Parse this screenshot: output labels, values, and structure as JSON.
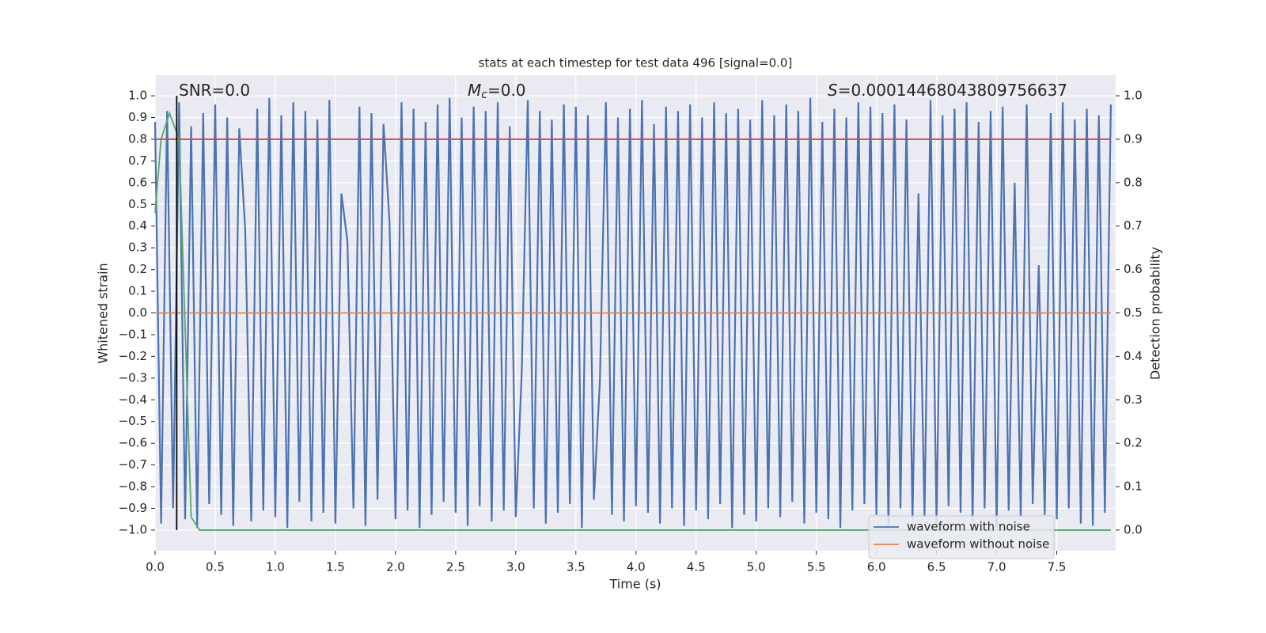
{
  "chart_data": {
    "type": "line",
    "title": "stats at each timestep for test data 496 [signal=0.0]",
    "xlabel": "Time (s)",
    "ylabel": "Whitened strain",
    "y2label": "Detection probability",
    "annotations": [
      {
        "text": "SNR=0.0"
      },
      {
        "symbol": "M",
        "sub": "c",
        "text": "=0.0"
      },
      {
        "symbol": "S",
        "text": "=0.00014468043809756637"
      }
    ],
    "xlim": [
      0,
      7.99
    ],
    "ylim": [
      -1.095,
      1.095
    ],
    "y2lim": [
      -0.0475,
      1.0475
    ],
    "xticks": [
      {
        "value": 0,
        "label": "0.0"
      },
      {
        "value": 0.5,
        "label": "0.5"
      },
      {
        "value": 1,
        "label": "1.0"
      },
      {
        "value": 1.5,
        "label": "1.5"
      },
      {
        "value": 2,
        "label": "2.0"
      },
      {
        "value": 2.5,
        "label": "2.5"
      },
      {
        "value": 3,
        "label": "3.0"
      },
      {
        "value": 3.5,
        "label": "3.5"
      },
      {
        "value": 4,
        "label": "4.0"
      },
      {
        "value": 4.5,
        "label": "4.5"
      },
      {
        "value": 5,
        "label": "5.0"
      },
      {
        "value": 5.5,
        "label": "5.5"
      },
      {
        "value": 6,
        "label": "6.0"
      },
      {
        "value": 6.5,
        "label": "6.5"
      },
      {
        "value": 7,
        "label": "7.0"
      },
      {
        "value": 7.5,
        "label": "7.5"
      }
    ],
    "yticks": [
      {
        "value": -1,
        "label": "−1.0"
      },
      {
        "value": -0.9,
        "label": "−0.9"
      },
      {
        "value": -0.8,
        "label": "−0.8"
      },
      {
        "value": -0.7,
        "label": "−0.7"
      },
      {
        "value": -0.6,
        "label": "−0.6"
      },
      {
        "value": -0.5,
        "label": "−0.5"
      },
      {
        "value": -0.4,
        "label": "−0.4"
      },
      {
        "value": -0.3,
        "label": "−0.3"
      },
      {
        "value": -0.2,
        "label": "−0.2"
      },
      {
        "value": -0.1,
        "label": "−0.1"
      },
      {
        "value": 0,
        "label": "0.0"
      },
      {
        "value": 0.1,
        "label": "0.1"
      },
      {
        "value": 0.2,
        "label": "0.2"
      },
      {
        "value": 0.3,
        "label": "0.3"
      },
      {
        "value": 0.4,
        "label": "0.4"
      },
      {
        "value": 0.5,
        "label": "0.5"
      },
      {
        "value": 0.6,
        "label": "0.6"
      },
      {
        "value": 0.7,
        "label": "0.7"
      },
      {
        "value": 0.8,
        "label": "0.8"
      },
      {
        "value": 0.9,
        "label": "0.9"
      },
      {
        "value": 1,
        "label": "1.0"
      }
    ],
    "y2ticks": [
      {
        "value": 0,
        "label": "0.0"
      },
      {
        "value": 0.1,
        "label": "0.1"
      },
      {
        "value": 0.2,
        "label": "0.2"
      },
      {
        "value": 0.3,
        "label": "0.3"
      },
      {
        "value": 0.4,
        "label": "0.4"
      },
      {
        "value": 0.5,
        "label": "0.5"
      },
      {
        "value": 0.6,
        "label": "0.6"
      },
      {
        "value": 0.7,
        "label": "0.7"
      },
      {
        "value": 0.8,
        "label": "0.8"
      },
      {
        "value": 0.9,
        "label": "0.9"
      },
      {
        "value": 1,
        "label": "1.0"
      }
    ],
    "grid": true,
    "legend": "lower right",
    "series": [
      {
        "name": "waveform with noise",
        "color": "#4c72b0",
        "x": [
          0,
          0.05,
          0.1,
          0.15,
          0.2,
          0.25,
          0.3,
          0.35,
          0.4,
          0.45,
          0.5,
          0.55,
          0.6,
          0.65,
          0.7,
          0.75,
          0.8,
          0.85,
          0.9,
          0.95,
          1,
          1.05,
          1.1,
          1.15,
          1.2,
          1.25,
          1.3,
          1.35,
          1.4,
          1.45,
          1.5,
          1.55,
          1.6,
          1.65,
          1.7,
          1.75,
          1.8,
          1.85,
          1.9,
          1.95,
          2,
          2.05,
          2.1,
          2.15,
          2.2,
          2.25,
          2.3,
          2.35,
          2.4,
          2.45,
          2.5,
          2.55,
          2.6,
          2.65,
          2.7,
          2.75,
          2.8,
          2.85,
          2.9,
          2.95,
          3,
          3.05,
          3.1,
          3.15,
          3.2,
          3.25,
          3.3,
          3.35,
          3.4,
          3.45,
          3.5,
          3.55,
          3.6,
          3.65,
          3.7,
          3.75,
          3.8,
          3.85,
          3.9,
          3.95,
          4,
          4.05,
          4.1,
          4.15,
          4.2,
          4.25,
          4.3,
          4.35,
          4.4,
          4.45,
          4.5,
          4.55,
          4.6,
          4.65,
          4.7,
          4.75,
          4.8,
          4.85,
          4.9,
          4.95,
          5,
          5.05,
          5.1,
          5.15,
          5.2,
          5.25,
          5.3,
          5.35,
          5.4,
          5.45,
          5.5,
          5.55,
          5.6,
          5.65,
          5.7,
          5.75,
          5.8,
          5.85,
          5.9,
          5.95,
          6,
          6.05,
          6.1,
          6.15,
          6.2,
          6.25,
          6.3,
          6.35,
          6.4,
          6.45,
          6.5,
          6.55,
          6.6,
          6.65,
          6.7,
          6.75,
          6.8,
          6.85,
          6.9,
          6.95,
          7,
          7.05,
          7.1,
          7.15,
          7.2,
          7.25,
          7.3,
          7.35,
          7.4,
          7.45,
          7.5,
          7.55,
          7.6,
          7.65,
          7.7,
          7.75,
          7.8,
          7.85,
          7.9,
          7.95
        ],
        "values": [
          0.88,
          -0.97,
          0.93,
          -0.9,
          0.97,
          -0.95,
          0.86,
          -0.99,
          0.92,
          -0.88,
          0.96,
          -0.93,
          0.9,
          -0.98,
          0.85,
          0.38,
          -0.96,
          0.94,
          -0.91,
          0.99,
          -0.94,
          0.91,
          -0.99,
          0.97,
          -0.87,
          0.93,
          -0.96,
          0.89,
          -0.92,
          0.98,
          -0.97,
          0.55,
          0.33,
          -0.9,
          0.95,
          -0.98,
          0.92,
          -0.86,
          0.87,
          0.42,
          -0.95,
          0.97,
          -0.91,
          0.94,
          -0.99,
          0.88,
          -0.93,
          0.96,
          -0.87,
          0.99,
          -0.92,
          0.9,
          -0.98,
          0.95,
          -0.89,
          0.93,
          -0.96,
          0.97,
          -0.91,
          0.86,
          -0.94,
          -0.27,
          0.98,
          -0.9,
          0.93,
          -0.97,
          0.89,
          -0.92,
          0.96,
          -0.88,
          0.95,
          -0.99,
          0.91,
          -0.86,
          -0.31,
          0.97,
          -0.93,
          0.9,
          -0.96,
          0.94,
          -0.89,
          0.98,
          -0.92,
          0.87,
          -0.97,
          0.95,
          -0.9,
          0.93,
          -0.98,
          0.96,
          -0.91,
          0.9,
          -0.95,
          0.97,
          -0.88,
          0.92,
          -0.99,
          0.94,
          -0.93,
          0.89,
          -0.96,
          0.98,
          -0.9,
          0.91,
          -0.94,
          0.96,
          -0.87,
          0.93,
          -0.97,
          0.99,
          -0.92,
          0.88,
          -0.95,
          0.94,
          -0.99,
          0.9,
          -0.91,
          0.97,
          -0.88,
          0.95,
          -0.93,
          0.92,
          -0.98,
          0.96,
          -0.9,
          0.89,
          -0.95,
          0.55,
          -0.94,
          0.98,
          -0.97,
          0.91,
          -0.89,
          0.94,
          -0.92,
          0.97,
          -0.96,
          0.88,
          -0.9,
          0.93,
          -0.99,
          0.95,
          -0.91,
          0.6,
          -0.94,
          0.96,
          -0.88,
          0.22,
          -0.93,
          0.92,
          -0.95,
          0.97,
          -0.9,
          0.89,
          -0.97,
          0.94,
          -0.98,
          0.91,
          -0.92,
          0.96
        ]
      },
      {
        "name": "waveform without noise",
        "color": "#dd8452",
        "x": [
          0,
          7.95
        ],
        "values": [
          0,
          0
        ]
      },
      {
        "color": "#55a868",
        "axis": "y2",
        "x": [
          0,
          0.05,
          0.12,
          0.2,
          0.3,
          0.37,
          7.95
        ],
        "values": [
          0.73,
          0.9,
          0.96,
          0.9,
          0.03,
          0,
          0
        ]
      },
      {
        "color": "#c44e52",
        "axis": "y2",
        "x": [
          0,
          7.95
        ],
        "values": [
          0.9,
          0.9
        ]
      },
      {
        "color": "#000000",
        "x": [
          0.18,
          0.18
        ],
        "values": [
          -1,
          1
        ]
      }
    ]
  }
}
